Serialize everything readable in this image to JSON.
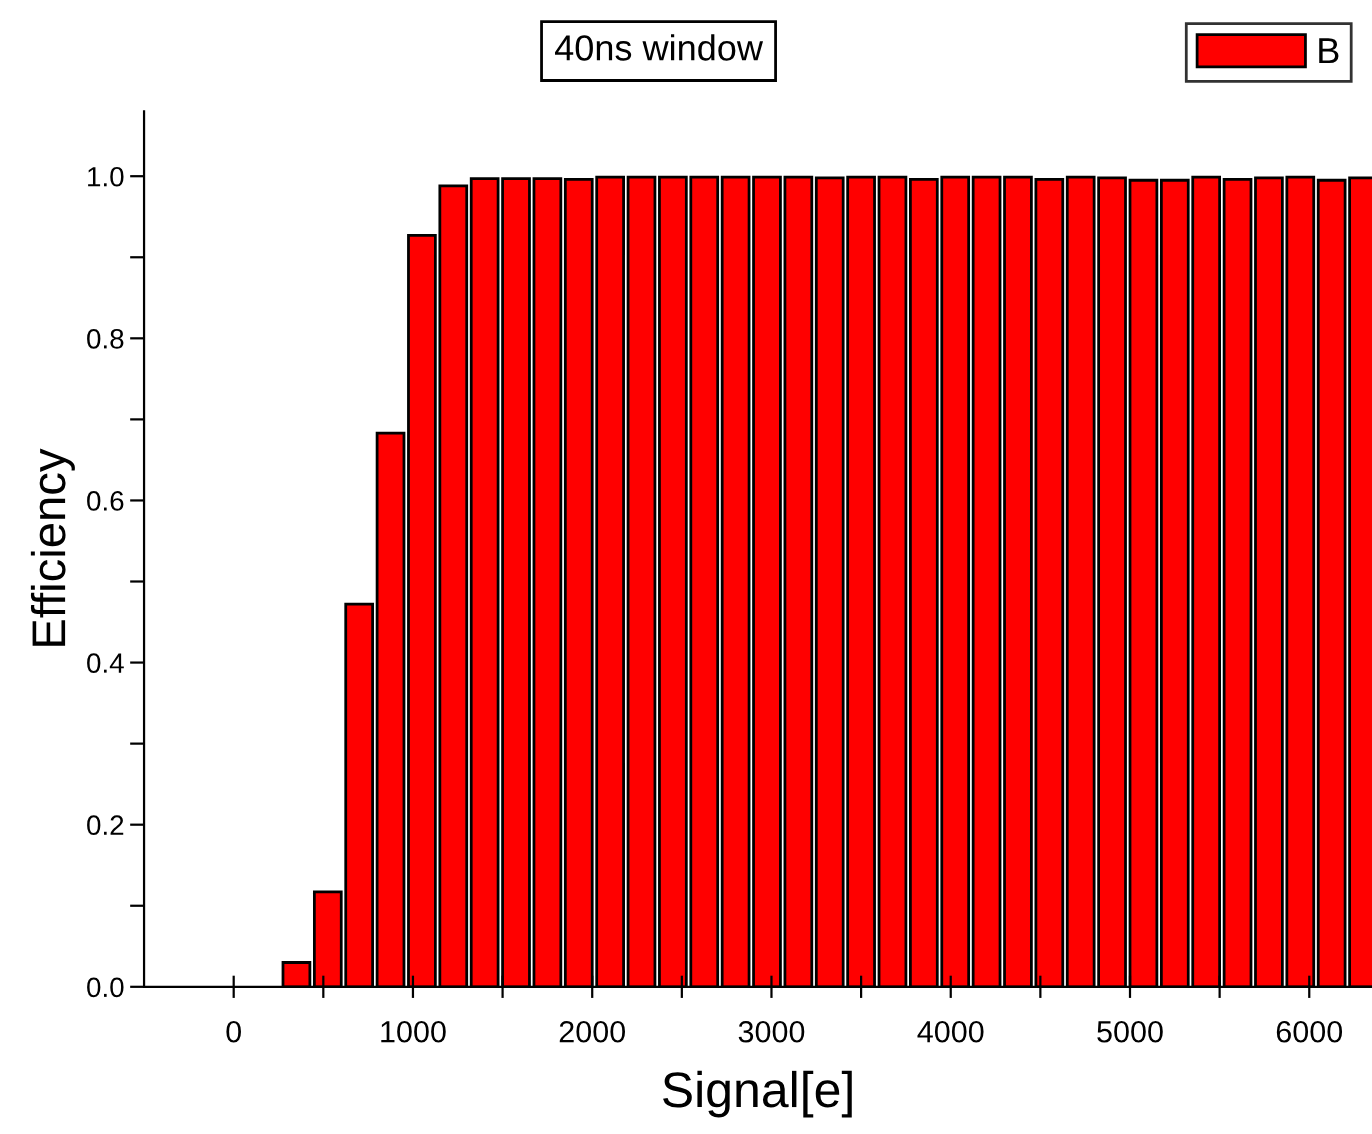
{
  "chart_data": {
    "type": "bar",
    "title": "40ns window",
    "xlabel": "Signal[e]",
    "ylabel": "Efficiency",
    "x": [
      350,
      525,
      700,
      875,
      1050,
      1225,
      1400,
      1575,
      1750,
      1925,
      2100,
      2275,
      2450,
      2625,
      2800,
      2975,
      3150,
      3325,
      3500,
      3675,
      3850,
      4025,
      4200,
      4375,
      4550,
      4725,
      4900,
      5075,
      5250,
      5425,
      5600,
      5775,
      5950,
      6125,
      6300
    ],
    "series": [
      {
        "name": "B",
        "color": "#ff0000",
        "values": [
          0.03,
          0.117,
          0.472,
          0.683,
          0.927,
          0.988,
          0.997,
          0.997,
          0.997,
          0.996,
          0.999,
          0.999,
          0.999,
          0.999,
          0.999,
          0.999,
          0.999,
          0.998,
          0.999,
          0.999,
          0.996,
          0.999,
          0.999,
          0.999,
          0.996,
          0.999,
          0.998,
          0.995,
          0.995,
          0.999,
          0.996,
          0.998,
          0.999,
          0.995,
          0.998
        ]
      }
    ],
    "xlim": [
      -500,
      6350
    ],
    "ylim": [
      0,
      1.08
    ],
    "xticks": [
      0,
      {
        "value": 500,
        "label": null
      },
      1000,
      {
        "value": 1500,
        "label": null
      },
      2000,
      {
        "value": 2500,
        "label": null
      },
      3000,
      {
        "value": 3500,
        "label": null
      },
      4000,
      {
        "value": 4500,
        "label": null
      },
      5000,
      {
        "value": 5500,
        "label": null
      },
      6000
    ],
    "yticks": [
      {
        "value": 0,
        "label": "0.0"
      },
      {
        "value": 0.1,
        "label": null
      },
      0.2,
      {
        "value": 0.3,
        "label": null
      },
      0.4,
      {
        "value": 0.5,
        "label": null
      },
      0.6,
      {
        "value": 0.7,
        "label": null
      },
      0.8,
      {
        "value": 0.9,
        "label": null
      },
      {
        "value": 1.0,
        "label": "1.0"
      }
    ],
    "grid": false,
    "legend": "top right"
  }
}
